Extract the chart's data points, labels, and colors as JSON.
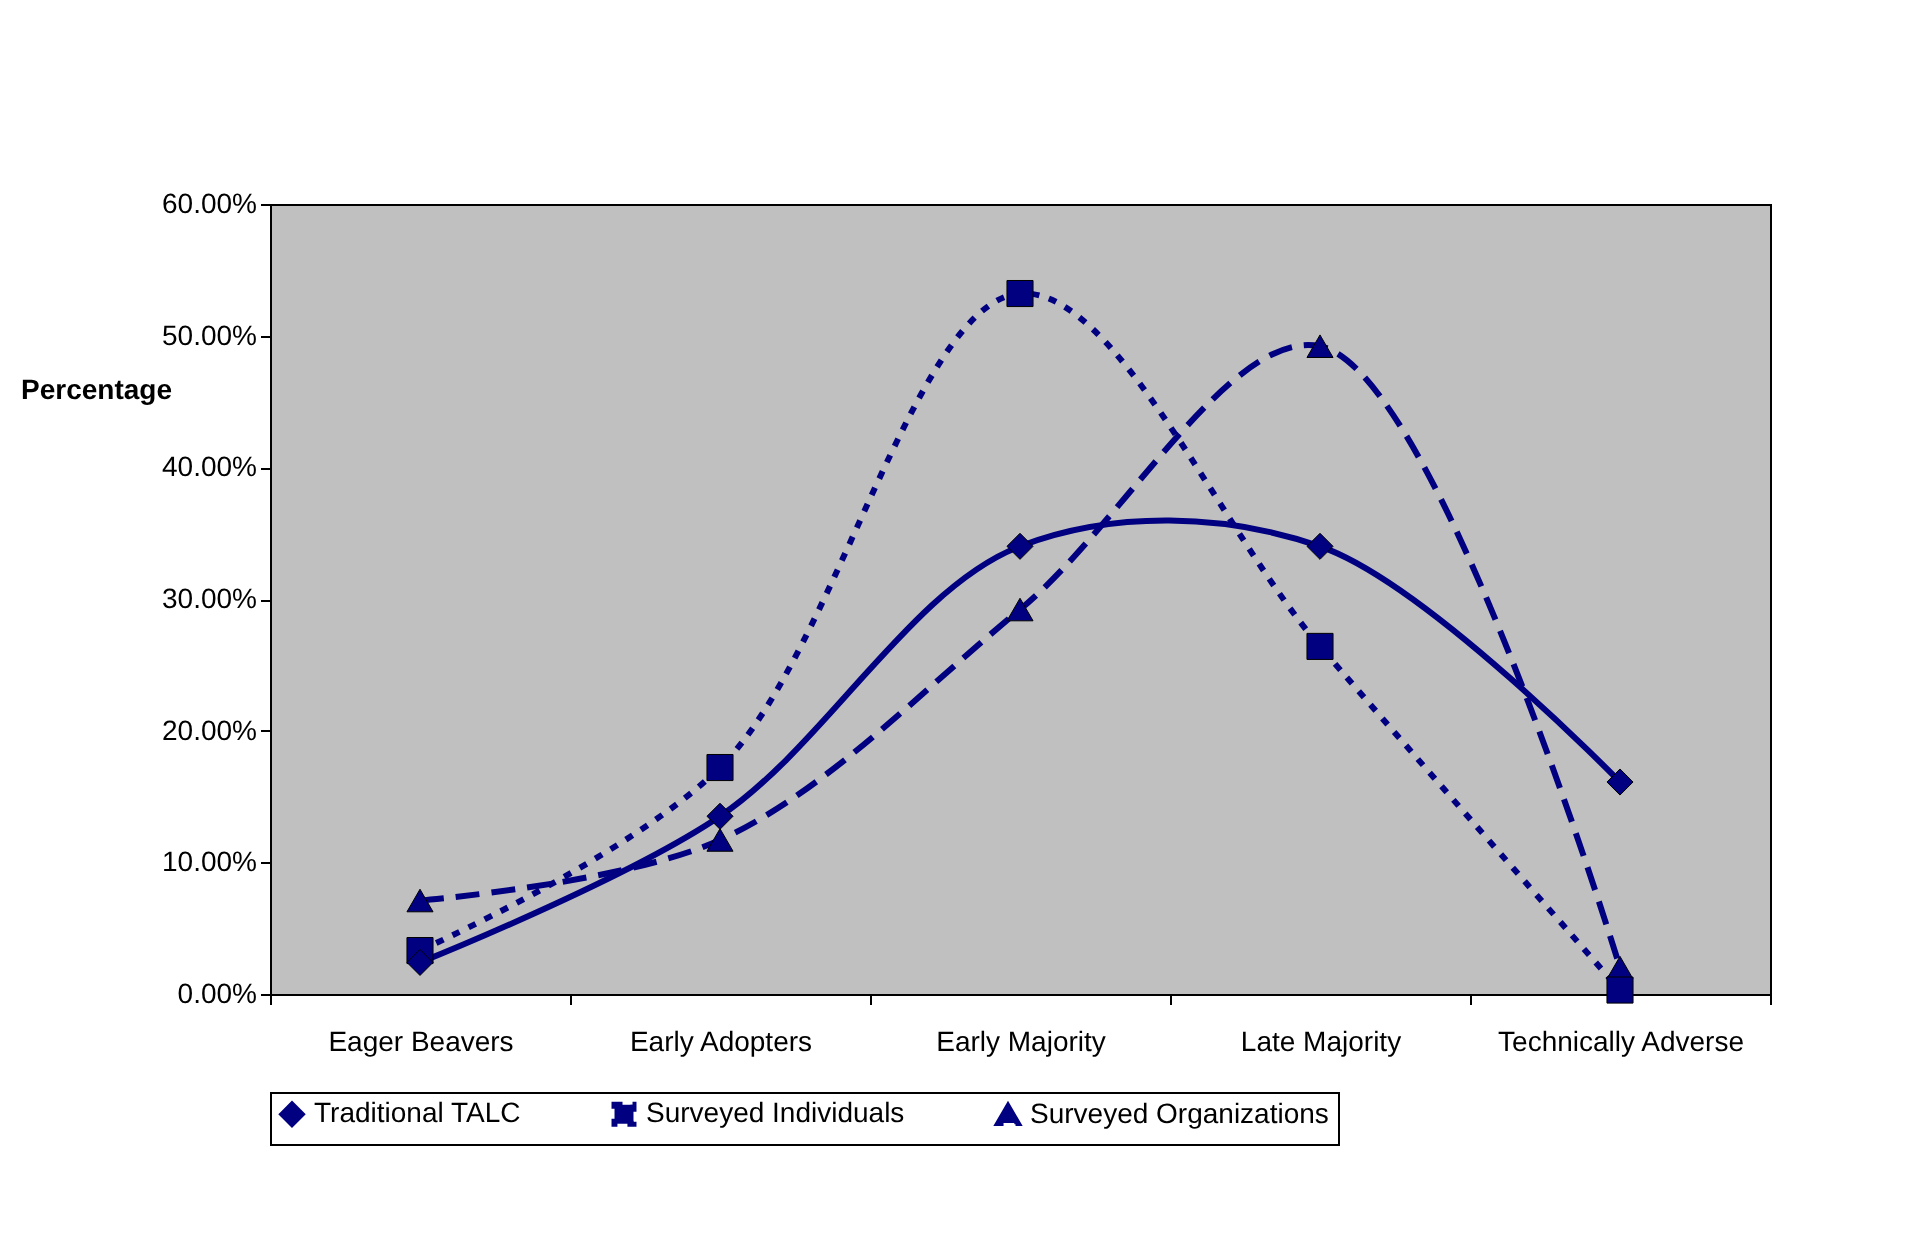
{
  "chart_data": {
    "type": "line",
    "ylabel": "Percentage",
    "categories": [
      "Eager Beavers",
      "Early Adopters",
      "Early Majority",
      "Late Majority",
      "Technically Adverse"
    ],
    "series": [
      {
        "name": "Traditional TALC",
        "color": "#000080",
        "marker": "diamond",
        "line_style": "solid",
        "values": [
          2.4,
          13.5,
          34.0,
          34.0,
          16.1
        ]
      },
      {
        "name": "Surveyed Individuals",
        "color": "#000080",
        "marker": "square",
        "line_style": "dotted",
        "values": [
          3.3,
          17.2,
          53.2,
          26.4,
          0.3
        ]
      },
      {
        "name": "Surveyed Organizations",
        "color": "#000080",
        "marker": "triangle",
        "line_style": "dashed",
        "values": [
          7.1,
          11.7,
          29.2,
          49.2,
          2.0
        ]
      }
    ],
    "ylim": [
      0,
      60
    ],
    "yticks": [
      {
        "value": 0,
        "label": "0.00%"
      },
      {
        "value": 10,
        "label": "10.00%"
      },
      {
        "value": 20,
        "label": "20.00%"
      },
      {
        "value": 30,
        "label": "30.00%"
      },
      {
        "value": 40,
        "label": "40.00%"
      },
      {
        "value": 50,
        "label": "50.00%"
      },
      {
        "value": 60,
        "label": "60.00%"
      }
    ],
    "grid": false,
    "legend": "bottom"
  }
}
